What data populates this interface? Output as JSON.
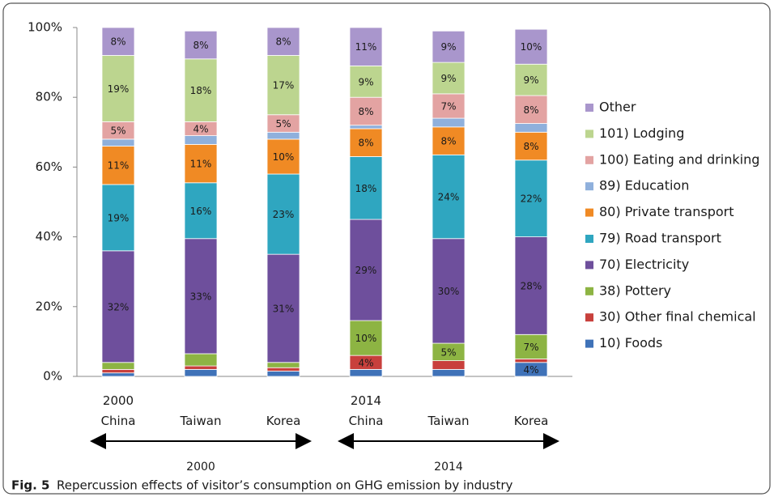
{
  "chart_data": {
    "type": "stacked_bar",
    "caption": {
      "label": "Fig. 5",
      "text": "Repercussion effects of visitor’s consumption on GHG emission by industry"
    },
    "categories": [
      [
        "2000",
        "China"
      ],
      [
        "Taiwan"
      ],
      [
        "Korea"
      ],
      [
        "2014",
        "China"
      ],
      [
        "Taiwan"
      ],
      [
        "Korea"
      ]
    ],
    "groups": [
      "2000",
      "2014"
    ],
    "ylim": [
      0,
      100
    ],
    "yticks": [
      {
        "value": 0,
        "label": "0%"
      },
      {
        "value": 20,
        "label": "20%"
      },
      {
        "value": 40,
        "label": "40%"
      },
      {
        "value": 60,
        "label": "60%"
      },
      {
        "value": 80,
        "label": "80%"
      },
      {
        "value": 100,
        "label": "100%"
      }
    ],
    "legend": "right",
    "series": [
      {
        "name": "10) Foods",
        "color": "#3f72b8",
        "label_color": "#ffffff",
        "values": [
          1,
          2,
          1.5,
          2,
          2,
          4
        ],
        "value_labels": [
          null,
          null,
          null,
          null,
          null,
          "4%"
        ]
      },
      {
        "name": "30) Other final chemical",
        "color": "#c8403c",
        "label_color": "#ffffff",
        "values": [
          1,
          1,
          1,
          4,
          2.5,
          1
        ],
        "value_labels": [
          null,
          null,
          null,
          "4%",
          null,
          null
        ]
      },
      {
        "name": "38) Pottery",
        "color": "#8db443",
        "label_color": "#1a1a1a",
        "values": [
          2,
          3.5,
          1.5,
          10,
          5,
          7
        ],
        "value_labels": [
          null,
          null,
          null,
          "10%",
          "5%",
          "7%"
        ]
      },
      {
        "name": "70) Electricity",
        "color": "#6e4f9c",
        "label_color": "#ffffff",
        "values": [
          32,
          33,
          31,
          29,
          30,
          28
        ],
        "value_labels": [
          "32%",
          "33%",
          "31%",
          "29%",
          "30%",
          "28%"
        ]
      },
      {
        "name": "79) Road transport",
        "color": "#2fa6c0",
        "label_color": "#ffffff",
        "values": [
          19,
          16,
          23,
          18,
          24,
          22
        ],
        "value_labels": [
          "19%",
          "16%",
          "23%",
          "18%",
          "24%",
          "22%"
        ]
      },
      {
        "name": "80) Private transport",
        "color": "#f08a24",
        "label_color": "#1a1a1a",
        "values": [
          11,
          11,
          10,
          8,
          8,
          8
        ],
        "value_labels": [
          "11%",
          "11%",
          "10%",
          "8%",
          "8%",
          "8%"
        ]
      },
      {
        "name": "89) Education",
        "color": "#8fb0dc",
        "label_color": "#1a1a1a",
        "values": [
          2,
          2.5,
          2,
          1,
          2.5,
          2.5
        ],
        "value_labels": [
          null,
          null,
          null,
          null,
          null,
          null
        ]
      },
      {
        "name": "100) Eating and drinking",
        "color": "#e3a3a2",
        "label_color": "#1a1a1a",
        "values": [
          5,
          4,
          5,
          8,
          7,
          8
        ],
        "value_labels": [
          "5%",
          "4%",
          "5%",
          "8%",
          "7%",
          "8%"
        ]
      },
      {
        "name": "101) Lodging",
        "color": "#bcd58f",
        "label_color": "#1a1a1a",
        "values": [
          19,
          18,
          17,
          9,
          9,
          9
        ],
        "value_labels": [
          "19%",
          "18%",
          "17%",
          "9%",
          "9%",
          "9%"
        ]
      },
      {
        "name": "Other",
        "color": "#a996cc",
        "label_color": "#ffffff",
        "values": [
          8,
          8,
          8,
          11,
          9,
          10
        ],
        "value_labels": [
          "8%",
          "8%",
          "8%",
          "11%",
          "9%",
          "10%"
        ]
      }
    ]
  }
}
